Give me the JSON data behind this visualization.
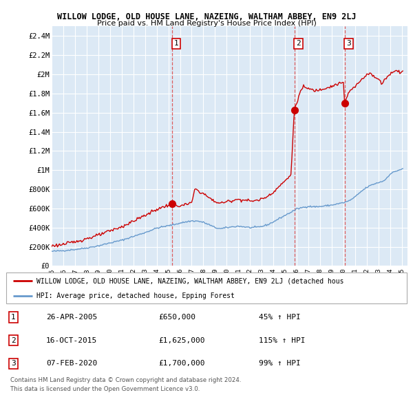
{
  "title": "WILLOW LODGE, OLD HOUSE LANE, NAZEING, WALTHAM ABBEY, EN9 2LJ",
  "subtitle": "Price paid vs. HM Land Registry's House Price Index (HPI)",
  "ylim": [
    0,
    2500000
  ],
  "yticks": [
    0,
    200000,
    400000,
    600000,
    800000,
    1000000,
    1200000,
    1400000,
    1600000,
    1800000,
    2000000,
    2200000,
    2400000
  ],
  "ytick_labels": [
    "£0",
    "£200K",
    "£400K",
    "£600K",
    "£800K",
    "£1M",
    "£1.2M",
    "£1.4M",
    "£1.6M",
    "£1.8M",
    "£2M",
    "£2.2M",
    "£2.4M"
  ],
  "xlim_start": 1995.0,
  "xlim_end": 2025.5,
  "sale_dates": [
    2005.32,
    2015.79,
    2020.1
  ],
  "sale_prices": [
    650000,
    1625000,
    1700000
  ],
  "sale_labels": [
    "1",
    "2",
    "3"
  ],
  "sale_label_pcts": [
    "45%",
    "115%",
    "99%"
  ],
  "sale_label_dates_str": [
    "26-APR-2005",
    "16-OCT-2015",
    "07-FEB-2020"
  ],
  "sale_label_prices_str": [
    "£650,000",
    "£1,625,000",
    "£1,700,000"
  ],
  "property_color": "#cc0000",
  "hpi_color": "#6699cc",
  "vline_color": "#dd4444",
  "bg_color": "#dce9f5",
  "grid_color": "#ffffff",
  "legend_property_label": "WILLOW LODGE, OLD HOUSE LANE, NAZEING, WALTHAM ABBEY, EN9 2LJ (detached hous",
  "legend_hpi_label": "HPI: Average price, detached house, Epping Forest",
  "footer1": "Contains HM Land Registry data © Crown copyright and database right 2024.",
  "footer2": "This data is licensed under the Open Government Licence v3.0."
}
